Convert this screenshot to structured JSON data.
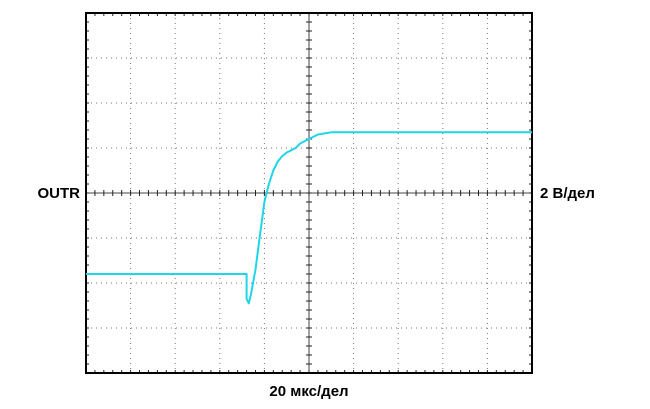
{
  "chart_data": {
    "type": "line",
    "channel_label": "OUTR",
    "vertical_scale_label": "2 В/дел",
    "horizontal_scale_label": "20 мкс/дел",
    "grid": true,
    "divisions": {
      "x": 10,
      "y": 8
    },
    "xlim": [
      0,
      10
    ],
    "ylim": [
      -4,
      4
    ],
    "trace_color": "#1ed6e6",
    "series": [
      {
        "x": [
          0,
          1,
          2,
          3,
          3.6,
          3.6,
          3.65,
          3.7,
          3.8,
          3.9,
          4.0,
          4.1,
          4.2,
          4.3,
          4.4,
          4.5,
          4.6,
          4.7,
          4.8,
          5.0,
          5.2,
          5.5,
          6,
          7,
          8,
          9,
          10
        ],
        "y": [
          -1.8,
          -1.8,
          -1.8,
          -1.8,
          -1.8,
          -2.35,
          -2.45,
          -2.25,
          -1.7,
          -0.95,
          -0.2,
          0.2,
          0.5,
          0.7,
          0.82,
          0.9,
          0.95,
          1.0,
          1.1,
          1.2,
          1.3,
          1.35,
          1.35,
          1.35,
          1.35,
          1.35,
          1.35
        ]
      }
    ]
  }
}
